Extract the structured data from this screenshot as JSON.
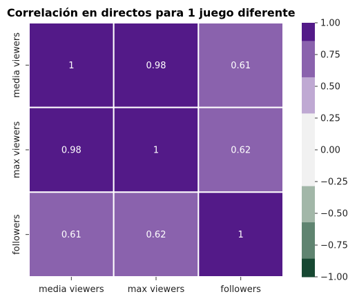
{
  "chart_data": {
    "type": "heatmap",
    "title": "Correlación en directos para 1 juego diferente",
    "xlabel": "",
    "ylabel": "",
    "x_categories": [
      "media viewers",
      "max viewers",
      "followers"
    ],
    "y_categories": [
      "media viewers",
      "max viewers",
      "followers"
    ],
    "values": [
      [
        1,
        0.98,
        0.61
      ],
      [
        0.98,
        1,
        0.62
      ],
      [
        0.61,
        0.62,
        1
      ]
    ],
    "cell_labels": [
      [
        "1",
        "0.98",
        "0.61"
      ],
      [
        "0.98",
        "1",
        "0.62"
      ],
      [
        "0.61",
        "0.62",
        "1"
      ]
    ],
    "colorbar": {
      "vmin": -1.0,
      "vmax": 1.0,
      "ticks": [
        1.0,
        0.75,
        0.5,
        0.25,
        0.0,
        -0.25,
        -0.5,
        -0.75,
        -1.0
      ],
      "tick_labels": [
        "1.00",
        "0.75",
        "0.50",
        "0.25",
        "0.00",
        "−0.25",
        "−0.50",
        "−0.75",
        "−1.00"
      ],
      "bands": [
        {
          "from": 0.857,
          "to": 1.0,
          "color": "#531a88"
        },
        {
          "from": 0.571,
          "to": 0.857,
          "color": "#8a62ad"
        },
        {
          "from": 0.286,
          "to": 0.571,
          "color": "#bfa9d3"
        },
        {
          "from": -0.0,
          "to": 0.286,
          "color": "#f1f1f1"
        },
        {
          "from": -0.286,
          "to": 0.0,
          "color": "#f1f1f1"
        },
        {
          "from": -0.571,
          "to": -0.286,
          "color": "#a2b7a8"
        },
        {
          "from": -0.857,
          "to": -0.571,
          "color": "#5f8470"
        },
        {
          "from": -1.0,
          "to": -0.857,
          "color": "#174832"
        }
      ]
    },
    "grid_line_color": "#ffffff"
  }
}
